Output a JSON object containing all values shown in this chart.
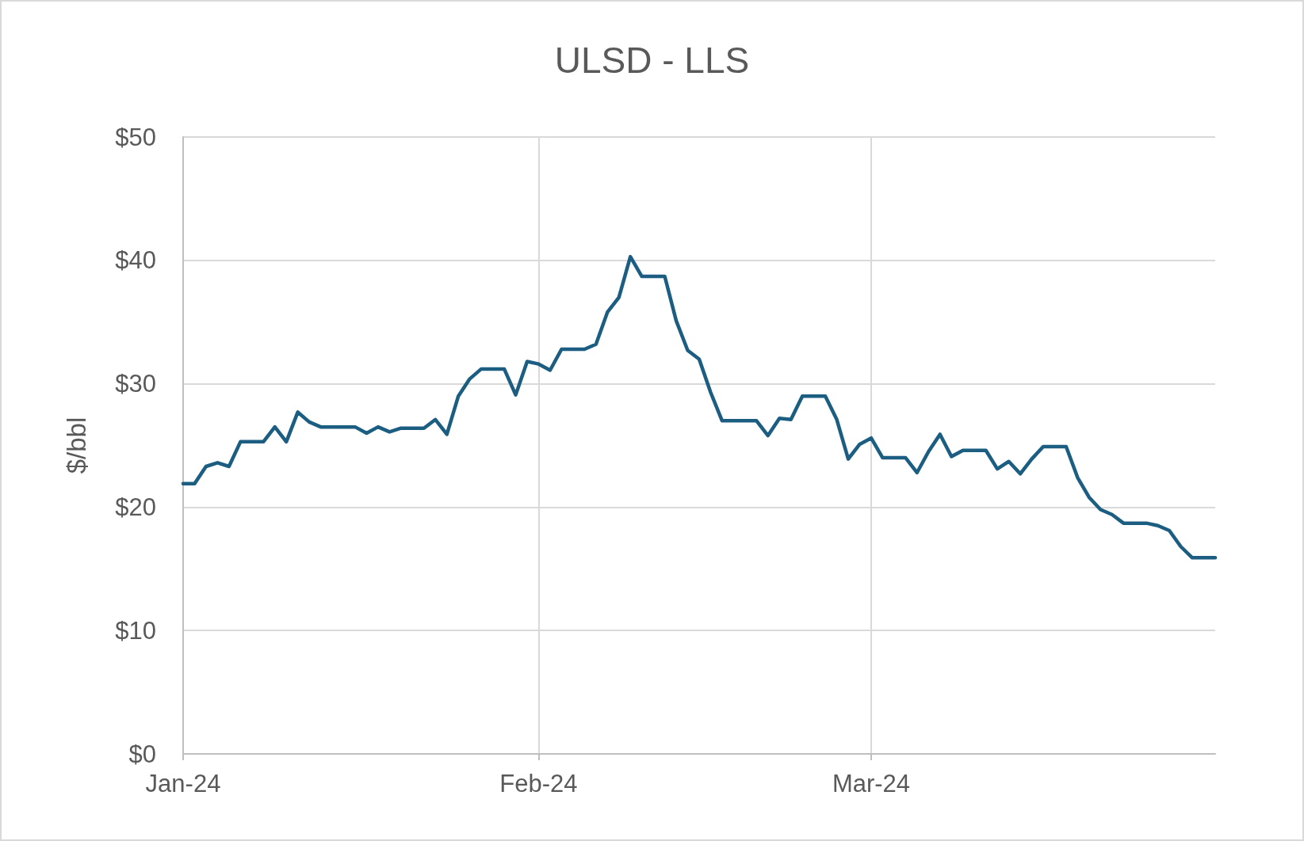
{
  "chart_data": {
    "type": "line",
    "title": "ULSD - LLS",
    "ylabel": "$/bbl",
    "x": [
      "2024-01-01",
      "2024-01-02",
      "2024-01-03",
      "2024-01-04",
      "2024-01-05",
      "2024-01-06",
      "2024-01-07",
      "2024-01-08",
      "2024-01-09",
      "2024-01-10",
      "2024-01-11",
      "2024-01-12",
      "2024-01-13",
      "2024-01-14",
      "2024-01-15",
      "2024-01-16",
      "2024-01-17",
      "2024-01-18",
      "2024-01-19",
      "2024-01-20",
      "2024-01-21",
      "2024-01-22",
      "2024-01-23",
      "2024-01-24",
      "2024-01-25",
      "2024-01-26",
      "2024-01-27",
      "2024-01-28",
      "2024-01-29",
      "2024-01-30",
      "2024-01-31",
      "2024-02-01",
      "2024-02-02",
      "2024-02-03",
      "2024-02-04",
      "2024-02-05",
      "2024-02-06",
      "2024-02-07",
      "2024-02-08",
      "2024-02-09",
      "2024-02-10",
      "2024-02-11",
      "2024-02-12",
      "2024-02-13",
      "2024-02-14",
      "2024-02-15",
      "2024-02-16",
      "2024-02-17",
      "2024-02-18",
      "2024-02-19",
      "2024-02-20",
      "2024-02-21",
      "2024-02-22",
      "2024-02-23",
      "2024-02-24",
      "2024-02-25",
      "2024-02-26",
      "2024-02-27",
      "2024-02-28",
      "2024-02-29",
      "2024-03-01",
      "2024-03-02",
      "2024-03-03",
      "2024-03-04",
      "2024-03-05",
      "2024-03-06",
      "2024-03-07",
      "2024-03-08",
      "2024-03-09",
      "2024-03-10",
      "2024-03-11",
      "2024-03-12",
      "2024-03-13",
      "2024-03-14",
      "2024-03-15",
      "2024-03-16",
      "2024-03-17",
      "2024-03-18",
      "2024-03-19",
      "2024-03-20",
      "2024-03-21",
      "2024-03-22",
      "2024-03-23",
      "2024-03-24",
      "2024-03-25",
      "2024-03-26",
      "2024-03-27",
      "2024-03-28",
      "2024-03-29",
      "2024-03-30",
      "2024-03-31"
    ],
    "series": [
      {
        "color": "#1b5e82",
        "values": [
          21.9,
          21.9,
          23.3,
          23.6,
          23.3,
          25.3,
          25.3,
          25.3,
          26.5,
          25.3,
          27.7,
          26.9,
          26.5,
          26.5,
          26.5,
          26.5,
          26.0,
          26.5,
          26.1,
          26.4,
          26.4,
          26.4,
          27.1,
          25.9,
          29.0,
          30.4,
          31.2,
          31.2,
          31.2,
          29.1,
          31.8,
          31.6,
          31.1,
          32.8,
          32.8,
          32.8,
          33.2,
          35.8,
          37.0,
          40.3,
          38.7,
          38.7,
          38.7,
          35.1,
          32.7,
          32.0,
          29.3,
          27.0,
          27.0,
          27.0,
          27.0,
          25.8,
          27.2,
          27.1,
          29.0,
          29.0,
          29.0,
          27.1,
          23.9,
          25.1,
          25.6,
          24.0,
          24.0,
          24.0,
          22.8,
          24.5,
          25.9,
          24.1,
          24.6,
          24.6,
          24.6,
          23.1,
          23.7,
          22.7,
          23.9,
          24.9,
          24.9,
          24.9,
          22.4,
          20.8,
          19.8,
          19.4,
          18.7,
          18.7,
          18.7,
          18.5,
          18.1,
          16.8,
          15.9,
          15.9,
          15.9
        ]
      }
    ],
    "xlim": [
      "2024-01-01",
      "2024-03-31"
    ],
    "xticks": [
      {
        "value": "2024-01-01",
        "label": "Jan-24"
      },
      {
        "value": "2024-02-01",
        "label": "Feb-24"
      },
      {
        "value": "2024-03-01",
        "label": "Mar-24"
      }
    ],
    "ylim": [
      0,
      50
    ],
    "yticks": [
      {
        "value": 0,
        "label": "$0"
      },
      {
        "value": 10,
        "label": "$10"
      },
      {
        "value": 20,
        "label": "$20"
      },
      {
        "value": 30,
        "label": "$30"
      },
      {
        "value": 40,
        "label": "$40"
      },
      {
        "value": 50,
        "label": "$50"
      }
    ],
    "grid": true,
    "marker": "none",
    "line_style": "solid"
  }
}
